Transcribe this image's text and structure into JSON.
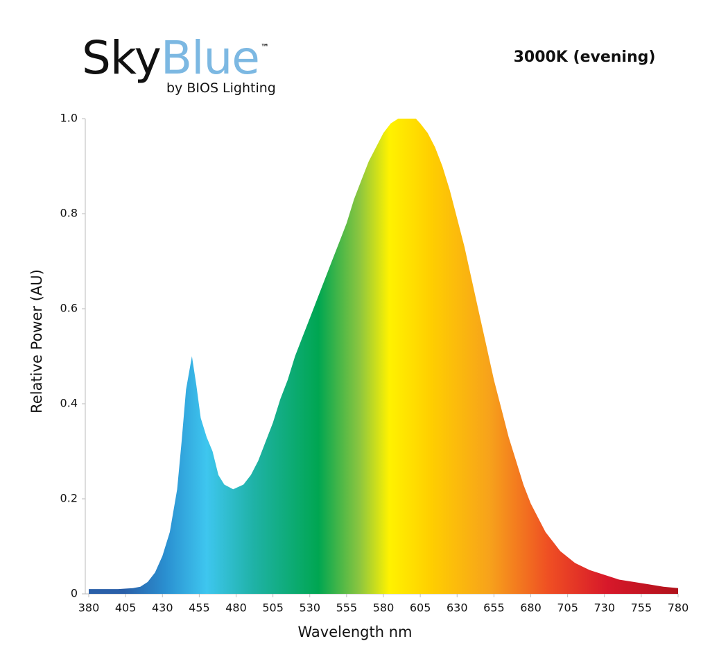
{
  "logo": {
    "brand_dark": "Sky",
    "brand_light": "Blue",
    "trademark": "™",
    "byline": "by BIOS Lighting"
  },
  "chart_data": {
    "type": "area",
    "title": "3000K (evening)",
    "x_label": "Wavelength nm",
    "y_label": "Relative Power (AU)",
    "x": [
      380,
      390,
      400,
      410,
      415,
      420,
      425,
      430,
      435,
      440,
      443,
      446,
      450,
      453,
      456,
      460,
      464,
      468,
      472,
      478,
      485,
      490,
      495,
      500,
      505,
      510,
      515,
      520,
      525,
      530,
      535,
      540,
      545,
      550,
      555,
      560,
      565,
      570,
      575,
      580,
      585,
      590,
      595,
      602,
      605,
      610,
      615,
      620,
      625,
      630,
      635,
      640,
      645,
      650,
      655,
      660,
      665,
      670,
      675,
      680,
      685,
      690,
      695,
      700,
      710,
      720,
      730,
      740,
      750,
      760,
      770,
      780
    ],
    "values": [
      0.01,
      0.01,
      0.01,
      0.012,
      0.015,
      0.025,
      0.045,
      0.08,
      0.13,
      0.22,
      0.32,
      0.43,
      0.5,
      0.44,
      0.37,
      0.33,
      0.3,
      0.25,
      0.23,
      0.22,
      0.23,
      0.25,
      0.28,
      0.32,
      0.36,
      0.41,
      0.45,
      0.5,
      0.54,
      0.58,
      0.62,
      0.66,
      0.7,
      0.74,
      0.78,
      0.83,
      0.87,
      0.91,
      0.94,
      0.97,
      0.99,
      1.0,
      1.0,
      1.0,
      0.99,
      0.97,
      0.94,
      0.9,
      0.85,
      0.79,
      0.73,
      0.66,
      0.59,
      0.52,
      0.45,
      0.39,
      0.33,
      0.28,
      0.23,
      0.19,
      0.16,
      0.13,
      0.11,
      0.09,
      0.065,
      0.05,
      0.04,
      0.03,
      0.025,
      0.02,
      0.015,
      0.012
    ],
    "xlim": [
      380,
      780
    ],
    "xticks": [
      380,
      405,
      430,
      455,
      480,
      505,
      530,
      555,
      580,
      605,
      630,
      655,
      680,
      705,
      730,
      755,
      780
    ],
    "ylim": [
      0,
      1
    ],
    "yticks": [
      0,
      0.2,
      0.4,
      0.6,
      0.8,
      {
        "value": 1,
        "label": "1.0"
      }
    ]
  }
}
